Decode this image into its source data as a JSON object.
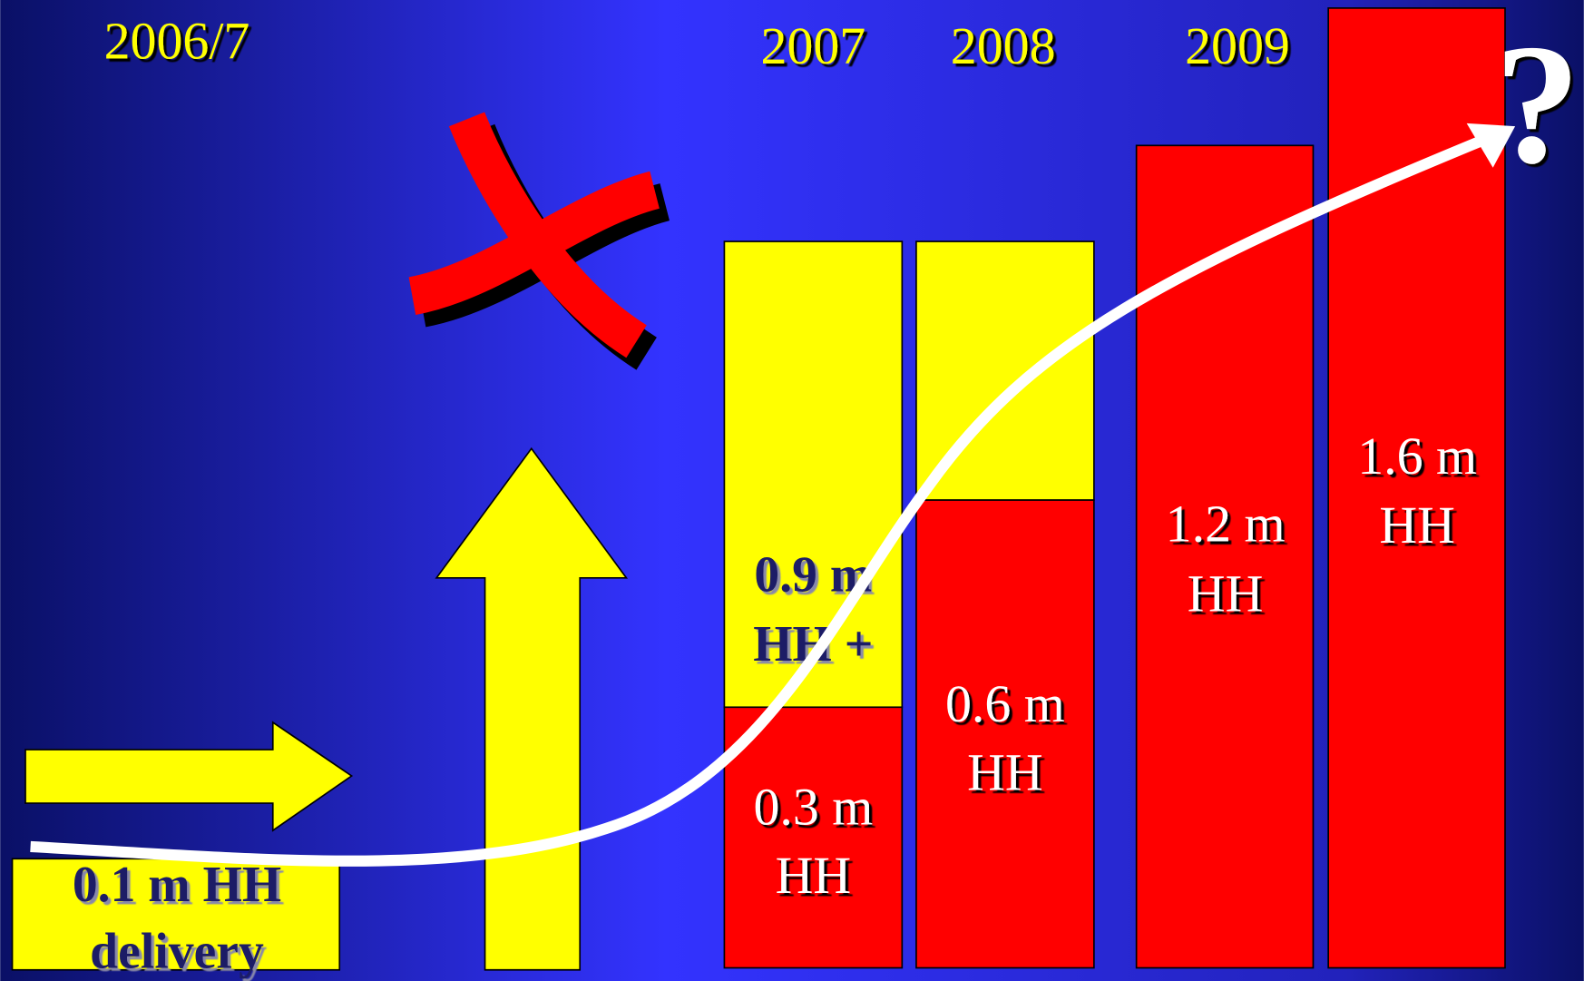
{
  "years": [
    "2006/7",
    "2007",
    "2008",
    "2009"
  ],
  "boxes": [
    [
      "0.1 m HH",
      "delivery"
    ],
    [
      "0.9 m",
      "HH +"
    ],
    [
      "0.3 m",
      "HH"
    ],
    [
      "0.6 m",
      "HH"
    ],
    [
      "1.2 m",
      "HH"
    ],
    [
      "1.6 m",
      "HH"
    ]
  ],
  "question": "?"
}
